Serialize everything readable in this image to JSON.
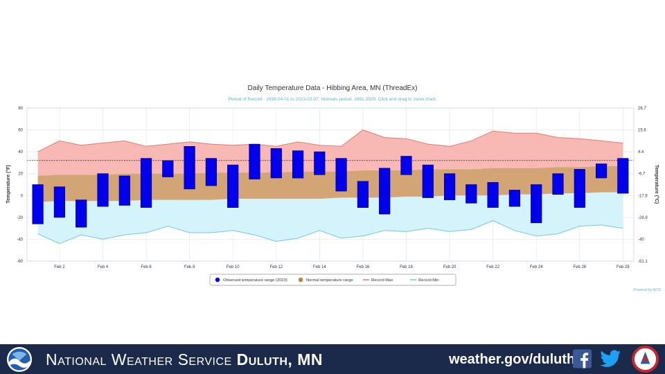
{
  "chart_data": {
    "type": "bar",
    "title": "Daily Temperature Data - Hibbing Area, MN (ThreadEx)",
    "subtitle": "Period of Record - 1938-04-01 to 2023-03-07. Normals period: 1991-2020. Click and drag to zoom chart.",
    "ylabel": "Temperature (°F)",
    "y2label": "Temperature (°C)",
    "ylim": [
      -60,
      80
    ],
    "y_ticks": [
      "-60",
      "-40",
      "-20",
      "0",
      "20",
      "40",
      "60",
      "80"
    ],
    "y2_ticks": [
      "-51.1",
      "-40",
      "-28.9",
      "-17.8",
      "-6.7",
      "4.4",
      "15.6",
      "26.7"
    ],
    "x_tick_labels": [
      "Feb 2",
      "Feb 4",
      "Feb 6",
      "Feb 8",
      "Feb 10",
      "Feb 12",
      "Feb 14",
      "Feb 16",
      "Feb 18",
      "Feb 20",
      "Feb 22",
      "Feb 24",
      "Feb 26",
      "Feb 28"
    ],
    "x_tick_days": [
      2,
      4,
      6,
      8,
      10,
      12,
      14,
      16,
      18,
      20,
      22,
      24,
      26,
      28
    ],
    "days": [
      1,
      2,
      3,
      4,
      5,
      6,
      7,
      8,
      9,
      10,
      11,
      12,
      13,
      14,
      15,
      16,
      17,
      18,
      19,
      20,
      21,
      22,
      23,
      24,
      25,
      26,
      27,
      28
    ],
    "freezing_line": 32,
    "observed_high": [
      10,
      8,
      -4,
      20,
      18,
      34,
      32,
      45,
      34,
      28,
      47,
      43,
      41,
      40,
      34,
      13,
      25,
      36,
      28,
      20,
      10,
      12,
      5,
      10,
      20,
      24,
      29,
      34
    ],
    "observed_low": [
      -26,
      -20,
      -29,
      -10,
      -9,
      -11,
      17,
      6,
      9,
      -11,
      15,
      16,
      16,
      19,
      4,
      -11,
      -17,
      19,
      -2,
      -4,
      -7,
      -11,
      -10,
      -25,
      1,
      -11,
      16,
      2
    ],
    "normal_high": [
      18,
      19,
      19,
      19,
      20,
      20,
      20,
      20,
      21,
      21,
      21,
      21,
      22,
      22,
      22,
      23,
      23,
      23,
      24,
      24,
      24,
      25,
      25,
      25,
      26,
      26,
      27,
      27
    ],
    "normal_low": [
      -6,
      -5,
      -5,
      -5,
      -5,
      -4,
      -4,
      -4,
      -4,
      -3,
      -3,
      -3,
      -3,
      -3,
      -2,
      -2,
      -2,
      -1,
      -1,
      0,
      0,
      0,
      1,
      1,
      2,
      2,
      3,
      3
    ],
    "record_max": [
      40,
      50,
      46,
      48,
      50,
      45,
      47,
      49,
      47,
      46,
      47,
      45,
      49,
      46,
      45,
      60,
      53,
      52,
      47,
      45,
      50,
      59,
      57,
      57,
      53,
      52,
      50,
      48
    ],
    "record_min": [
      -35,
      -44,
      -36,
      -40,
      -36,
      -34,
      -28,
      -34,
      -34,
      -32,
      -36,
      -42,
      -39,
      -32,
      -39,
      -37,
      -32,
      -33,
      -30,
      -33,
      -31,
      -23,
      -32,
      -37,
      -35,
      -28,
      -27,
      -30
    ],
    "legend": [
      {
        "label": "Observed temperature range (2023)",
        "marker": "dot",
        "color": "#0000ee"
      },
      {
        "label": "Normal temperature range",
        "marker": "dot",
        "color": "#b8862b"
      },
      {
        "label": "Record Max",
        "marker": "line",
        "color": "#e07b72"
      },
      {
        "label": "Record Min",
        "marker": "line",
        "color": "#74c9de"
      }
    ],
    "legend_position": "bottom-center",
    "credit": "Powered by ACIS",
    "grid": true
  },
  "footer": {
    "org_prefix": "National Weather Service",
    "office": "Duluth, MN",
    "url": "weather.gov/duluth"
  },
  "colors": {
    "observed": "#0000ee",
    "normal_band": "#d4a574",
    "record_max_fill": "#f8b8b4",
    "record_max_line": "#e07b72",
    "record_min_fill": "#d4f3fa",
    "record_min_line": "#74c9de",
    "footer_bg": "#1b2a4a"
  }
}
